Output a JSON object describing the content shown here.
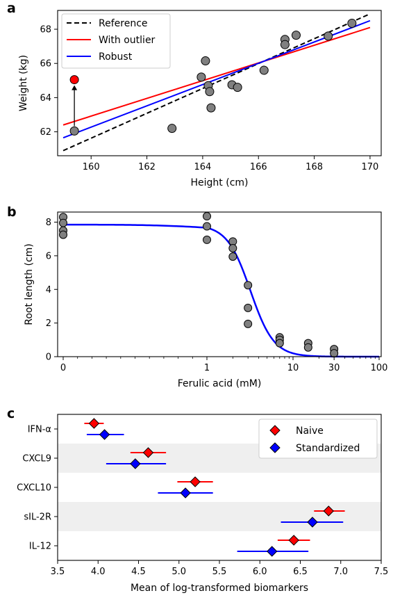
{
  "chart_data": [
    {
      "panel": "a",
      "type": "scatter",
      "xlabel": "Height (cm)",
      "ylabel": "Weight (kg)",
      "xlim": [
        158.8,
        170.4
      ],
      "ylim": [
        60.6,
        69.1
      ],
      "xticks": [
        160,
        162,
        164,
        166,
        168,
        170
      ],
      "yticks": [
        62,
        64,
        66,
        68
      ],
      "legend_position": "top-left",
      "points": [
        {
          "x": 159.4,
          "y": 62.05
        },
        {
          "x": 162.9,
          "y": 62.2
        },
        {
          "x": 163.95,
          "y": 65.2
        },
        {
          "x": 164.1,
          "y": 66.15
        },
        {
          "x": 164.2,
          "y": 64.7
        },
        {
          "x": 164.25,
          "y": 64.35
        },
        {
          "x": 164.3,
          "y": 63.4
        },
        {
          "x": 165.05,
          "y": 64.75
        },
        {
          "x": 165.25,
          "y": 64.6
        },
        {
          "x": 166.2,
          "y": 65.6
        },
        {
          "x": 166.95,
          "y": 67.4
        },
        {
          "x": 166.95,
          "y": 67.1
        },
        {
          "x": 167.35,
          "y": 67.65
        },
        {
          "x": 168.5,
          "y": 67.6
        },
        {
          "x": 169.35,
          "y": 68.35
        }
      ],
      "outlier": {
        "x": 159.4,
        "y": 65.05,
        "color": "#ff0000"
      },
      "series": [
        {
          "name": "Reference",
          "style": "dashed",
          "color": "#000000",
          "x": [
            159.0,
            170.0
          ],
          "y": [
            60.9,
            68.9
          ]
        },
        {
          "name": "With outlier",
          "style": "solid",
          "color": "#ff0000",
          "x": [
            159.0,
            170.0
          ],
          "y": [
            62.4,
            68.1
          ]
        },
        {
          "name": "Robust",
          "style": "solid",
          "color": "#0000ff",
          "x": [
            159.0,
            170.0
          ],
          "y": [
            61.65,
            68.5
          ]
        }
      ]
    },
    {
      "panel": "b",
      "type": "scatter",
      "xlabel": "Ferulic acid (mM)",
      "ylabel": "Root length (cm)",
      "xscale": "symlog",
      "xticks": [
        0,
        1,
        10,
        30,
        100
      ],
      "xtick_labels": [
        "0",
        "1",
        "10",
        "30",
        "100"
      ],
      "yticks": [
        0,
        2,
        4,
        6,
        8
      ],
      "ylim": [
        0,
        8.6
      ],
      "points": [
        {
          "x": 0,
          "y": 8.3
        },
        {
          "x": 0,
          "y": 7.95
        },
        {
          "x": 0,
          "y": 7.5
        },
        {
          "x": 0,
          "y": 7.25
        },
        {
          "x": 1,
          "y": 8.35
        },
        {
          "x": 1,
          "y": 7.75
        },
        {
          "x": 1,
          "y": 6.95
        },
        {
          "x": 2,
          "y": 6.85
        },
        {
          "x": 2,
          "y": 6.45
        },
        {
          "x": 2,
          "y": 5.95
        },
        {
          "x": 3,
          "y": 4.25
        },
        {
          "x": 3,
          "y": 2.9
        },
        {
          "x": 3,
          "y": 1.95
        },
        {
          "x": 7,
          "y": 1.15
        },
        {
          "x": 7,
          "y": 1.0
        },
        {
          "x": 7,
          "y": 0.8
        },
        {
          "x": 15,
          "y": 0.8
        },
        {
          "x": 15,
          "y": 0.55
        },
        {
          "x": 30,
          "y": 0.45
        },
        {
          "x": 30,
          "y": 0.2
        }
      ],
      "fit": {
        "color": "#0000ff",
        "top": 7.85,
        "ec50": 3.2,
        "hill": 3.2
      }
    },
    {
      "panel": "c",
      "type": "dot",
      "xlabel": "Mean of log-transformed biomarkers",
      "xlim": [
        3.5,
        7.5
      ],
      "xticks": [
        3.5,
        4.0,
        4.5,
        5.0,
        5.5,
        6.0,
        6.5,
        7.0,
        7.5
      ],
      "xtick_labels": [
        "3.5",
        "4.0",
        "4.5",
        "5.0",
        "5.5",
        "6.0",
        "6.5",
        "7.0",
        "7.5"
      ],
      "categories": [
        "IFN-α",
        "CXCL9",
        "CXCL10",
        "sIL-2R",
        "IL-12"
      ],
      "legend_position": "top-right",
      "series": [
        {
          "name": "Naive",
          "color": "#ff0000",
          "mean": [
            3.95,
            4.62,
            5.2,
            6.85,
            6.42
          ],
          "low": [
            3.83,
            4.4,
            4.98,
            6.67,
            6.22
          ],
          "high": [
            4.07,
            4.84,
            5.42,
            7.05,
            6.62
          ]
        },
        {
          "name": "Standardized",
          "color": "#0000ff",
          "mean": [
            4.08,
            4.46,
            5.08,
            6.65,
            6.15
          ],
          "low": [
            3.86,
            4.1,
            4.74,
            6.26,
            5.72
          ],
          "high": [
            4.32,
            4.84,
            5.42,
            7.03,
            6.6
          ]
        }
      ]
    }
  ]
}
